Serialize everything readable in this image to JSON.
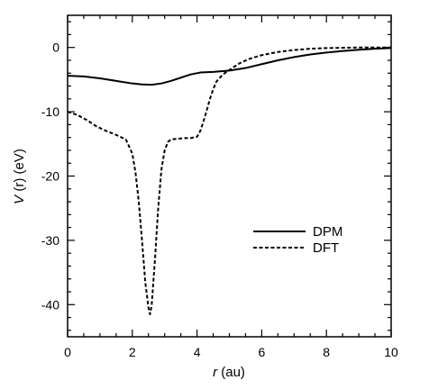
{
  "chart_data": {
    "type": "line",
    "xlabel_var": "r",
    "xlabel_unit": "(au)",
    "ylabel_var": "V",
    "ylabel_arg": "(r)",
    "ylabel_unit": "(eV)",
    "xlim": [
      0,
      10
    ],
    "ylim": [
      -45,
      5
    ],
    "x_ticks": [
      0,
      2,
      4,
      6,
      8,
      10
    ],
    "y_ticks": [
      0,
      -10,
      -20,
      -30,
      -40
    ],
    "x_tick_labels": [
      "0",
      "2",
      "4",
      "6",
      "8",
      "10"
    ],
    "y_tick_labels": [
      "0",
      "-10",
      "-20",
      "-30",
      "-40"
    ],
    "grid": false,
    "legend_position": "center-right",
    "series": [
      {
        "name": "DPM",
        "style": "solid",
        "x": [
          0,
          0.5,
          1.0,
          1.5,
          2.0,
          2.3,
          2.6,
          2.9,
          3.2,
          3.5,
          3.8,
          4.1,
          4.5,
          5.0,
          5.5,
          6.0,
          6.5,
          7.0,
          7.5,
          8.0,
          8.5,
          9.0,
          9.5,
          10.0
        ],
        "y": [
          -4.4,
          -4.5,
          -4.8,
          -5.2,
          -5.6,
          -5.75,
          -5.8,
          -5.6,
          -5.2,
          -4.7,
          -4.2,
          -3.9,
          -3.8,
          -3.6,
          -3.2,
          -2.6,
          -2.0,
          -1.5,
          -1.1,
          -0.8,
          -0.55,
          -0.35,
          -0.2,
          -0.1
        ]
      },
      {
        "name": "DFT",
        "style": "dashed",
        "x": [
          0,
          0.3,
          0.6,
          0.9,
          1.2,
          1.5,
          1.8,
          2.0,
          2.1,
          2.2,
          2.3,
          2.4,
          2.5,
          2.55,
          2.6,
          2.7,
          2.8,
          2.9,
          3.0,
          3.1,
          3.2,
          3.4,
          3.6,
          3.8,
          4.0,
          4.1,
          4.2,
          4.3,
          4.4,
          4.5,
          4.6,
          4.8,
          5.0,
          5.3,
          5.6,
          6.0,
          6.5,
          7.0,
          7.5,
          8.0,
          9.0,
          10.0
        ],
        "y": [
          -10.0,
          -10.5,
          -11.3,
          -12.3,
          -13.0,
          -13.6,
          -14.3,
          -16.5,
          -19.5,
          -24.0,
          -30.0,
          -36.5,
          -40.5,
          -41.5,
          -40.0,
          -33.0,
          -25.0,
          -19.0,
          -16.0,
          -14.7,
          -14.3,
          -14.2,
          -14.1,
          -14.1,
          -13.9,
          -13.0,
          -11.5,
          -9.8,
          -8.0,
          -6.5,
          -5.3,
          -4.2,
          -3.5,
          -2.5,
          -1.8,
          -1.2,
          -0.7,
          -0.4,
          -0.2,
          -0.1,
          0.0,
          0.0
        ]
      }
    ]
  }
}
